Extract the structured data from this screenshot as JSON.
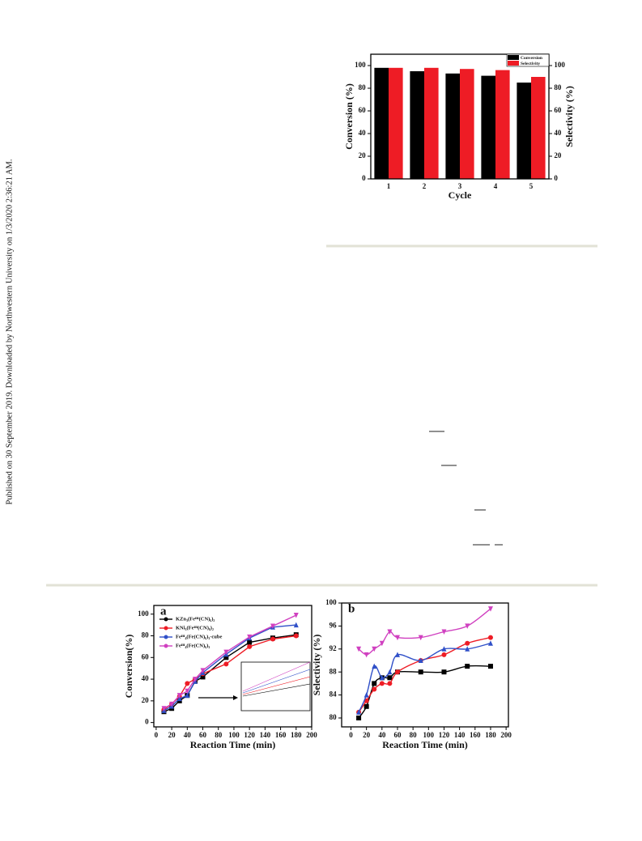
{
  "sidebar": "Published on 30 September 2019. Downloaded by Northwestern University on 1/3/2020 2:36:21 AM.",
  "chart_data": [
    {
      "type": "bar",
      "xlabel": "Cycle",
      "ylabel": "Conversion (%)",
      "y2label": "Selectivity (%)",
      "categories": [
        "1",
        "2",
        "3",
        "4",
        "5"
      ],
      "series": [
        {
          "name": "Conversion",
          "color": "#000000",
          "values": [
            98,
            95,
            93,
            91,
            85
          ]
        },
        {
          "name": "Selectivity",
          "color": "#ee1c25",
          "axis": "y2",
          "values": [
            98,
            98,
            97,
            96,
            90
          ]
        }
      ],
      "ylim": [
        0,
        110
      ],
      "yticks": [
        0,
        20,
        40,
        60,
        80,
        100
      ],
      "y2lim": [
        0,
        110
      ],
      "y2ticks": [
        0,
        20,
        40,
        60,
        80,
        100
      ],
      "legend": "upper right"
    },
    {
      "type": "line",
      "label": "a",
      "xlabel": "Reaction Time (min)",
      "ylabel": "Conversion(%)",
      "x": [
        10,
        20,
        30,
        40,
        50,
        60,
        90,
        120,
        150,
        180
      ],
      "series": [
        {
          "name": "KZn₃(Feᴵᴵᴵ(CN)₆)₂",
          "color": "#000000",
          "marker": "square",
          "values": [
            10,
            13,
            20,
            25,
            38,
            42,
            60,
            74,
            78,
            81
          ]
        },
        {
          "name": "KNi₃(Feᴵᴵᴵ(CN)₆)₂",
          "color": "#ee1c25",
          "marker": "circle",
          "values": [
            12,
            17,
            24,
            36,
            40,
            45,
            54,
            70,
            77,
            80
          ]
        },
        {
          "name": "Feᴵᴵᴵ₄(Fe(CN)₆)₃-cube",
          "color": "#3050c8",
          "marker": "triangle-up",
          "values": [
            11,
            15,
            22,
            25,
            38,
            46,
            63,
            78,
            88,
            90
          ]
        },
        {
          "name": "Feᴵᴵᴵ₄(Fe(CN)₆)₃",
          "color": "#d040c0",
          "marker": "triangle-down",
          "values": [
            13,
            17,
            25,
            29,
            40,
            48,
            65,
            79,
            89,
            99
          ]
        }
      ],
      "xlim": [
        -3,
        200
      ],
      "xticks": [
        0,
        20,
        40,
        60,
        80,
        100,
        120,
        140,
        160,
        180,
        200
      ],
      "ylim": [
        -4,
        108
      ],
      "yticks": [
        0,
        20,
        40,
        60,
        80,
        100
      ],
      "legend": "upper left"
    },
    {
      "type": "scatter",
      "label": "b",
      "xlabel": "Reaction Time (min)",
      "ylabel": "Selectivity (%)",
      "x": [
        10,
        20,
        30,
        40,
        50,
        60,
        90,
        120,
        150,
        180
      ],
      "series": [
        {
          "color": "#000000",
          "marker": "square",
          "values": [
            80,
            82,
            86,
            87,
            87,
            88,
            88,
            88,
            89,
            89
          ]
        },
        {
          "color": "#ee1c25",
          "marker": "circle",
          "values": [
            81,
            83,
            85,
            86,
            86,
            88,
            90,
            91,
            93,
            94
          ]
        },
        {
          "color": "#3050c8",
          "marker": "triangle-up",
          "values": [
            81,
            84,
            89,
            87,
            88,
            91,
            90,
            92,
            92,
            93
          ]
        },
        {
          "color": "#d040c0",
          "marker": "triangle-down",
          "values": [
            92,
            91,
            92,
            93,
            95,
            94,
            94,
            95,
            96,
            99
          ]
        }
      ],
      "xlim": [
        -12,
        203
      ],
      "xticks": [
        0,
        20,
        40,
        60,
        80,
        100,
        120,
        140,
        160,
        180,
        200
      ],
      "ylim": [
        78.45,
        100
      ],
      "yticks": [
        80,
        84,
        88,
        92,
        96,
        100
      ]
    }
  ]
}
